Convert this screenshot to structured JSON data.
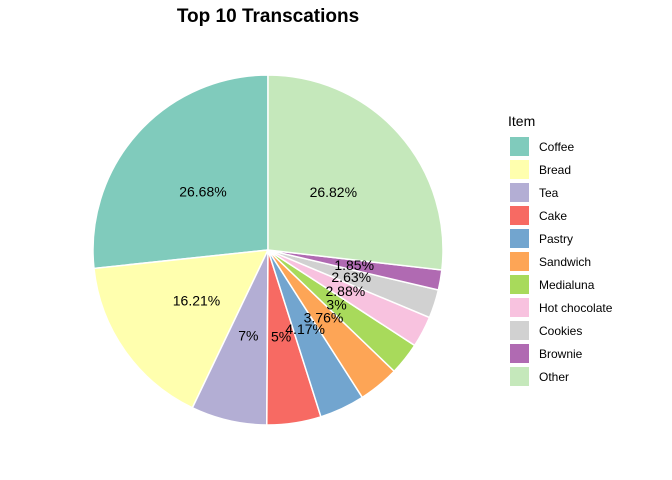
{
  "chart_data": {
    "type": "pie",
    "title": "Top 10 Transcations",
    "legend_title": "Item",
    "legend_position": "right",
    "start_angle_deg": 0,
    "direction": "counterclockwise",
    "slices": [
      {
        "name": "Coffee",
        "value": 26.68,
        "label": "26.68%",
        "color": "#80CBBC"
      },
      {
        "name": "Bread",
        "value": 16.21,
        "label": "16.21%",
        "color": "#FFFFAE"
      },
      {
        "name": "Tea",
        "value": 7.0,
        "label": "7%",
        "color": "#B3AED4"
      },
      {
        "name": "Cake",
        "value": 5.0,
        "label": "5%",
        "color": "#F76A63"
      },
      {
        "name": "Pastry",
        "value": 4.17,
        "label": "4.17%",
        "color": "#72A5CF"
      },
      {
        "name": "Sandwich",
        "value": 3.76,
        "label": "3.76%",
        "color": "#FDA556"
      },
      {
        "name": "Medialuna",
        "value": 3.0,
        "label": "3%",
        "color": "#A8DA5B"
      },
      {
        "name": "Hot chocolate",
        "value": 2.88,
        "label": "2.88%",
        "color": "#F8C2DF"
      },
      {
        "name": "Cookies",
        "value": 2.63,
        "label": "2.63%",
        "color": "#D1D1D1"
      },
      {
        "name": "Brownie",
        "value": 1.85,
        "label": "1.85%",
        "color": "#B06AB2"
      },
      {
        "name": "Other",
        "value": 26.82,
        "label": "26.82%",
        "color": "#C5E8BB"
      }
    ]
  }
}
